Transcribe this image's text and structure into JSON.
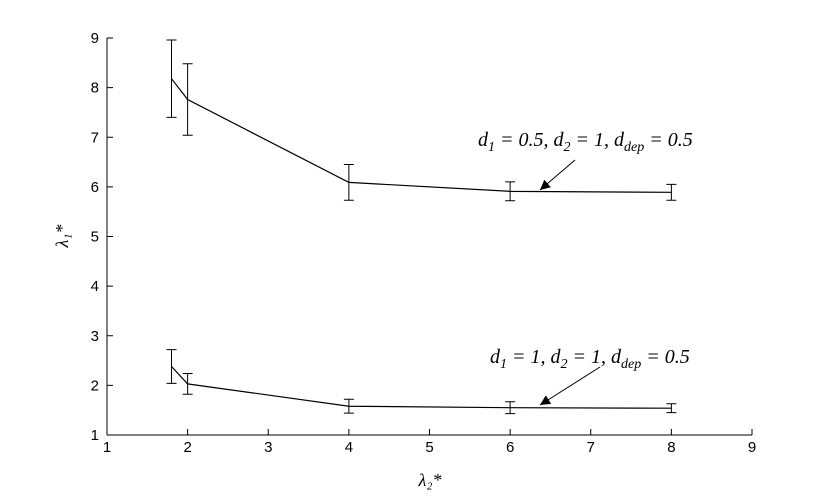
{
  "chart_data": {
    "type": "errorbar-line",
    "xlabel": "λ₂*",
    "ylabel": "λ₁*",
    "x": [
      1.8,
      2,
      4,
      6,
      8
    ],
    "series": [
      {
        "color": "#000000",
        "values": [
          8.18,
          7.76,
          6.09,
          5.91,
          5.89
        ],
        "errors": [
          0.78,
          0.72,
          0.36,
          0.19,
          0.16
        ]
      },
      {
        "color": "#000000",
        "values": [
          2.38,
          2.03,
          1.58,
          1.55,
          1.54
        ],
        "errors": [
          0.34,
          0.21,
          0.14,
          0.12,
          0.09
        ]
      }
    ],
    "annotations": [
      {
        "text": [
          "d",
          "1",
          " = 0.5, d",
          "2",
          " = 1, d",
          "dep",
          " = 0.5"
        ]
      },
      {
        "text": [
          "d",
          "1",
          " = 1, d",
          "2",
          " = 1, d",
          "dep",
          " = 0.5"
        ]
      }
    ],
    "xlim": [
      1,
      9
    ],
    "ylim": [
      1,
      9
    ],
    "xticks": [
      1,
      2,
      3,
      4,
      5,
      6,
      7,
      8,
      9
    ],
    "yticks": [
      1,
      2,
      3,
      4,
      5,
      6,
      7,
      8,
      9
    ],
    "grid": false
  }
}
